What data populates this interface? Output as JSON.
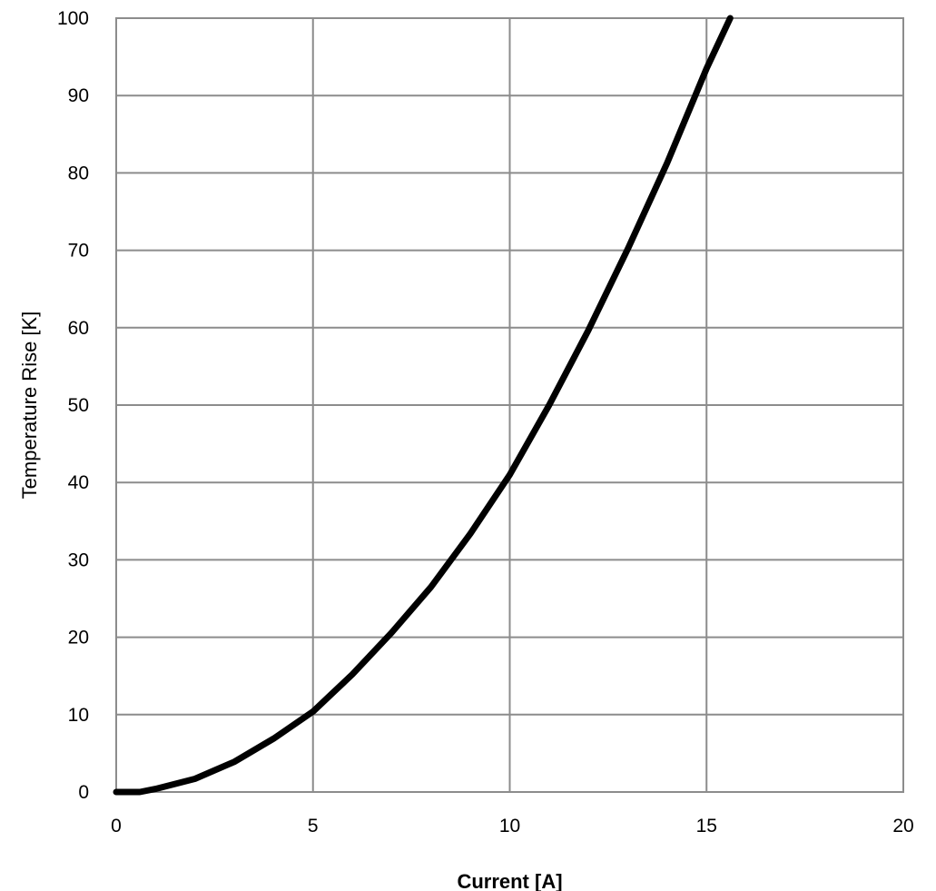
{
  "chart_data": {
    "type": "line",
    "title": "",
    "xlabel": "Current [A]",
    "ylabel": "Temperature Rise [K]",
    "xlim": [
      0,
      20
    ],
    "ylim": [
      0,
      100
    ],
    "xticks": [
      0,
      5,
      10,
      15,
      20
    ],
    "yticks": [
      0,
      10,
      20,
      30,
      40,
      50,
      60,
      70,
      80,
      90,
      100
    ],
    "grid": true,
    "series": [
      {
        "color": "#000000",
        "x": [
          0,
          0.6,
          1,
          2,
          3,
          4,
          5,
          6,
          7,
          8,
          9,
          10,
          11,
          12,
          13,
          14,
          15,
          15.6
        ],
        "y": [
          0,
          0,
          0.4,
          1.7,
          3.9,
          6.9,
          10.4,
          15.2,
          20.6,
          26.5,
          33.4,
          41.0,
          50.0,
          59.7,
          70.2,
          81.3,
          93.5,
          100
        ]
      }
    ]
  }
}
